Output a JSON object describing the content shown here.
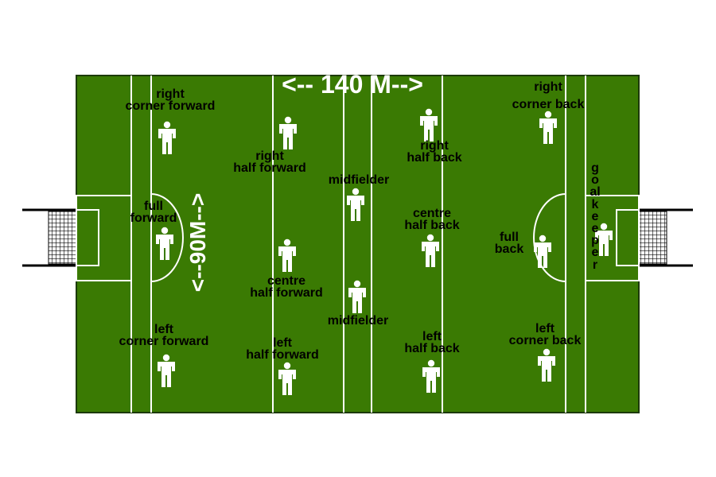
{
  "colors": {
    "grass": "#3a7a03",
    "lines": "#ffffff",
    "border": "#1c3a05",
    "figure": "#ffffff",
    "net": "#000000"
  },
  "dimensions": {
    "length_label": "<-- 140 M-->",
    "width_label": "<--90M-->"
  },
  "positions": {
    "right_corner_forward": [
      "right",
      "corner forward"
    ],
    "right_half_forward": [
      "right",
      "half forward"
    ],
    "full_forward": [
      "full",
      "forward"
    ],
    "centre_half_forward": [
      "centre",
      "half forward"
    ],
    "left_corner_forward": [
      "left",
      "corner forward"
    ],
    "left_half_forward": [
      "left",
      "half forward"
    ],
    "midfielder_top": [
      "midfielder"
    ],
    "midfielder_bottom": [
      "midfielder"
    ],
    "right_half_back": [
      "right",
      "half back"
    ],
    "centre_half_back": [
      "centre",
      "half back"
    ],
    "left_half_back": [
      "left",
      "half back"
    ],
    "right_corner_back": [
      "right",
      "corner back"
    ],
    "full_back": [
      "full",
      "back"
    ],
    "left_corner_back": [
      "left",
      "corner back"
    ],
    "goalkeeper": "goalkeeper"
  }
}
